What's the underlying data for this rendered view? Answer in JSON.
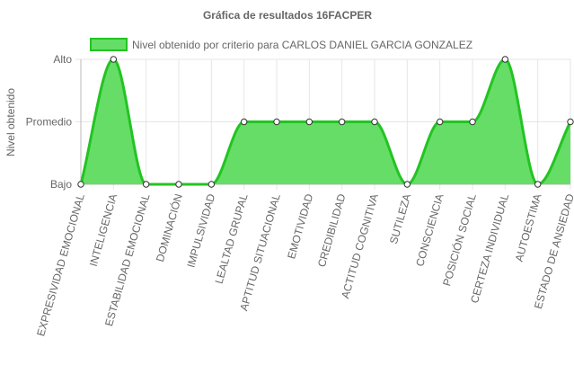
{
  "chart_data": {
    "type": "area",
    "title": "Gráfica de resultados 16FACPER",
    "ylabel": "Nivel obtenido",
    "xlabel": "",
    "y_ticks": [
      {
        "value": 3,
        "label": "Alto"
      },
      {
        "value": 2,
        "label": "Promedio"
      },
      {
        "value": 1,
        "label": "Bajo"
      }
    ],
    "ylim": [
      1,
      3
    ],
    "grid": true,
    "legend_position": "top",
    "categories": [
      "EXPRESIVIDAD EMOCIONAL",
      "INTELIGENCIA",
      "ESTABILIDAD EMOCIONAL",
      "DOMINACIÓN",
      "IMPULSIVIDAD",
      "LEALTAD GRUPAL",
      "APTITUD SITUACIONAL",
      "EMOTIVIDAD",
      "CREDIBILIDAD",
      "ACTITUD COGNITIVA",
      "SUTILEZA",
      "CONSCIENCIA",
      "POSICIÓN SOCIAL",
      "CERTEZA INDIVIDUAL",
      "AUTOESTIMA",
      "ESTADO DE ANSIEDAD"
    ],
    "series": [
      {
        "name": "Nivel obtenido por criterio para CARLOS DANIEL GARCIA GONZALEZ",
        "values": [
          1,
          3,
          1,
          1,
          1,
          2,
          2,
          2,
          2,
          2,
          1,
          2,
          2,
          3,
          1,
          2
        ],
        "color": "#22c422",
        "fill": "#66dd66"
      }
    ]
  }
}
